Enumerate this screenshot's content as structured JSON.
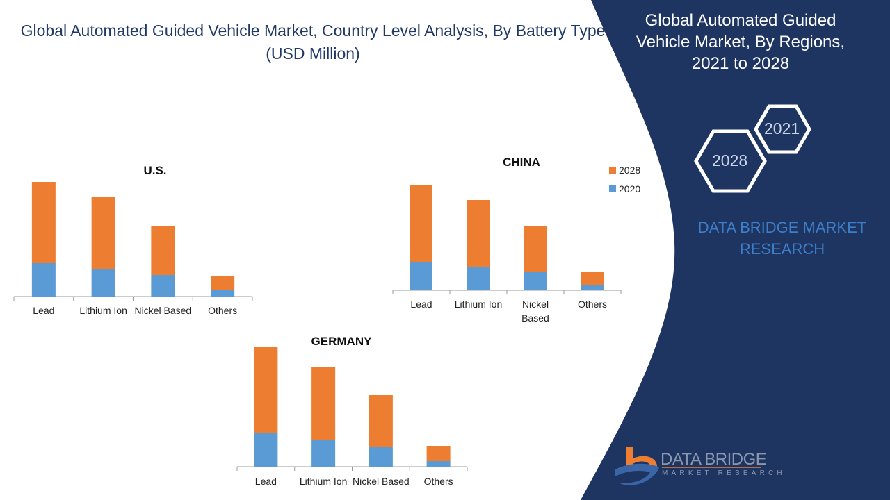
{
  "title": "Global Automated Guided Vehicle Market, Country Level Analysis, By Battery Type (USD Million)",
  "side_panel": {
    "title": "Global Automated Guided Vehicle Market, By Regions, 2021 to 2028",
    "hex_years": [
      "2021",
      "2028"
    ],
    "brand_text": "DATA BRIDGE MARKET RESEARCH",
    "logo_text": "DATA BRIDGE",
    "logo_subtext": "MARKET RESEARCH",
    "background_color": "#1e3461"
  },
  "colors": {
    "2020": "#5b9bd5",
    "2028": "#ed7d31"
  },
  "chart_data": [
    {
      "type": "bar",
      "stacked": true,
      "title": "U.S.",
      "categories": [
        "Lead",
        "Lithium Ion",
        "Nickel Based",
        "Others"
      ],
      "series": [
        {
          "name": "2020",
          "values": [
            49,
            40,
            31,
            9
          ]
        },
        {
          "name": "2028",
          "values": [
            116,
            103,
            71,
            21
          ]
        }
      ],
      "y_axis_shown": false,
      "grid": false
    },
    {
      "type": "bar",
      "stacked": true,
      "title": "CHINA",
      "categories": [
        "Lead",
        "Lithium Ion",
        "Nickel Based",
        "Others"
      ],
      "series": [
        {
          "name": "2020",
          "values": [
            41,
            33,
            26,
            8
          ]
        },
        {
          "name": "2028",
          "values": [
            111,
            97,
            66,
            19
          ]
        }
      ],
      "legend": [
        "2028",
        "2020"
      ],
      "legend_position": "right",
      "y_axis_shown": false,
      "grid": false
    },
    {
      "type": "bar",
      "stacked": true,
      "title": "GERMANY",
      "categories": [
        "Lead",
        "Lithium Ion",
        "Nickel Based",
        "Others"
      ],
      "series": [
        {
          "name": "2020",
          "values": [
            48,
            38,
            29,
            8
          ]
        },
        {
          "name": "2028",
          "values": [
            125,
            105,
            74,
            22
          ]
        }
      ],
      "y_axis_shown": false,
      "grid": false
    }
  ]
}
